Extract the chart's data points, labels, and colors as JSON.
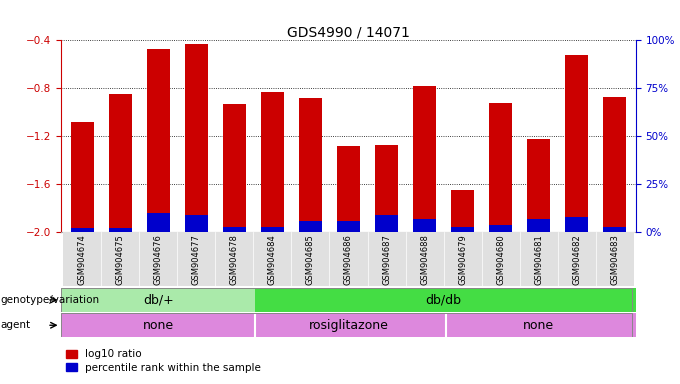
{
  "title": "GDS4990 / 14071",
  "samples": [
    "GSM904674",
    "GSM904675",
    "GSM904676",
    "GSM904677",
    "GSM904678",
    "GSM904684",
    "GSM904685",
    "GSM904686",
    "GSM904687",
    "GSM904688",
    "GSM904679",
    "GSM904680",
    "GSM904681",
    "GSM904682",
    "GSM904683"
  ],
  "log10_ratio": [
    -1.08,
    -0.85,
    -0.47,
    -0.43,
    -0.93,
    -0.83,
    -0.88,
    -1.28,
    -1.27,
    -0.78,
    -1.65,
    -0.92,
    -1.22,
    -0.52,
    -0.87
  ],
  "percentile_rank": [
    2,
    2,
    10,
    9,
    3,
    3,
    6,
    6,
    9,
    7,
    3,
    4,
    7,
    8,
    3
  ],
  "ylim_left": [
    -2.0,
    -0.4
  ],
  "yticks_left": [
    -2.0,
    -1.6,
    -1.2,
    -0.8,
    -0.4
  ],
  "ylim_right": [
    0,
    100
  ],
  "yticks_right": [
    0,
    25,
    50,
    75,
    100
  ],
  "ytick_labels_right": [
    "0%",
    "25%",
    "50%",
    "75%",
    "100%"
  ],
  "bar_color_red": "#cc0000",
  "bar_color_blue": "#0000cc",
  "bar_width": 0.6,
  "legend_red_label": "log10 ratio",
  "legend_blue_label": "percentile rank within the sample",
  "genotype_row_label": "genotype/variation",
  "agent_row_label": "agent",
  "axis_label_color_left": "#cc0000",
  "axis_label_color_right": "#0000cc",
  "geno_db_plus_color": "#aaeaaa",
  "geno_db_db_color": "#44dd44",
  "agent_color": "#dd88dd"
}
